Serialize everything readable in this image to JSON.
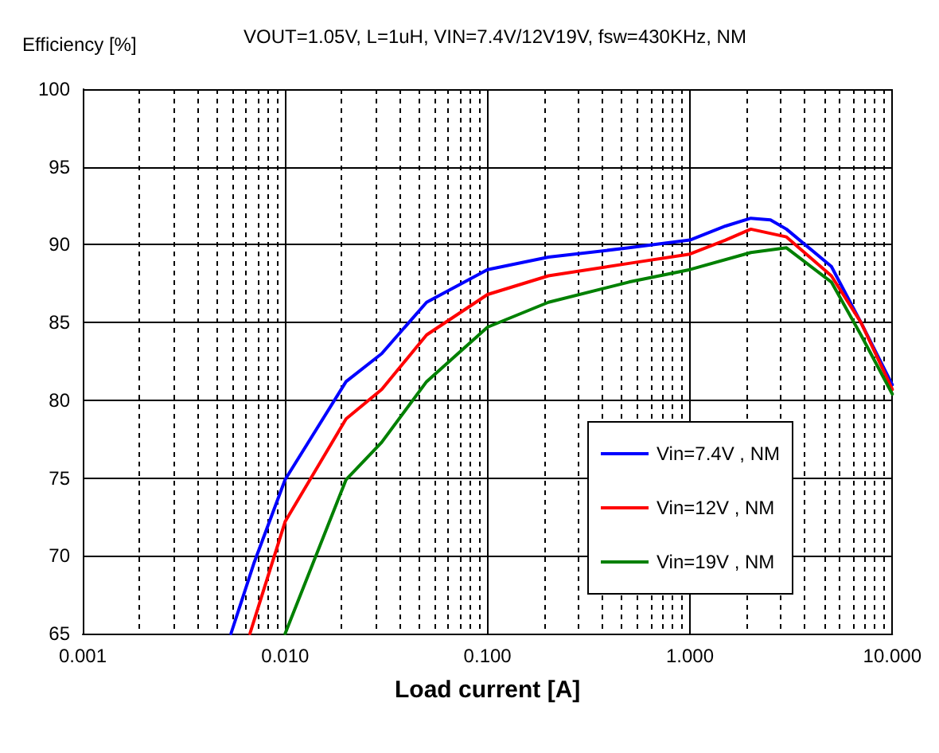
{
  "chart_data": {
    "type": "line",
    "title": "VOUT=1.05V, L=1uH, VIN=7.4V/12V19V, fsw=430KHz, NM",
    "xlabel": "Load current [A]",
    "ylabel": "Efficiency [%]",
    "log": "x",
    "xlim": [
      0.001,
      10
    ],
    "ylim": [
      65,
      100
    ],
    "xticks": [
      {
        "value": 0.001,
        "label": "0.001"
      },
      {
        "value": 0.01,
        "label": "0.010"
      },
      {
        "value": 0.1,
        "label": "0.100"
      },
      {
        "value": 1,
        "label": "1.000"
      },
      {
        "value": 10,
        "label": "10.000"
      }
    ],
    "yticks": [
      65,
      70,
      75,
      80,
      85,
      90,
      95,
      100
    ],
    "grid": true,
    "legend": "bottom right",
    "marker": "none",
    "line_style": "solid",
    "series": [
      {
        "name": "Vin=7.4V , NM",
        "color": "#0000ff",
        "x": [
          0.0054,
          0.007,
          0.01,
          0.02,
          0.03,
          0.05,
          0.1,
          0.2,
          0.5,
          1,
          1.5,
          2,
          2.5,
          3,
          5,
          7,
          10
        ],
        "values": [
          65,
          69.5,
          74.9,
          81.2,
          83,
          86.3,
          88.4,
          89.2,
          89.8,
          90.3,
          91.2,
          91.7,
          91.6,
          91,
          88.6,
          85,
          81
        ]
      },
      {
        "name": "Vin=12V , NM",
        "color": "#ff0000",
        "x": [
          0.0067,
          0.01,
          0.02,
          0.03,
          0.05,
          0.1,
          0.2,
          0.5,
          1,
          1.5,
          2,
          3,
          5,
          7,
          10
        ],
        "values": [
          65,
          72.2,
          78.8,
          80.7,
          84.2,
          86.8,
          88,
          88.8,
          89.4,
          90.3,
          91,
          90.5,
          88,
          85,
          80.7
        ]
      },
      {
        "name": "Vin=19V , NM",
        "color": "#008000",
        "x": [
          0.01,
          0.02,
          0.03,
          0.05,
          0.1,
          0.2,
          0.5,
          1,
          2,
          3,
          5,
          7,
          10
        ],
        "values": [
          65,
          74.9,
          77.3,
          81.2,
          84.7,
          86.3,
          87.6,
          88.4,
          89.5,
          89.8,
          87.6,
          84.2,
          80.4
        ]
      }
    ]
  }
}
